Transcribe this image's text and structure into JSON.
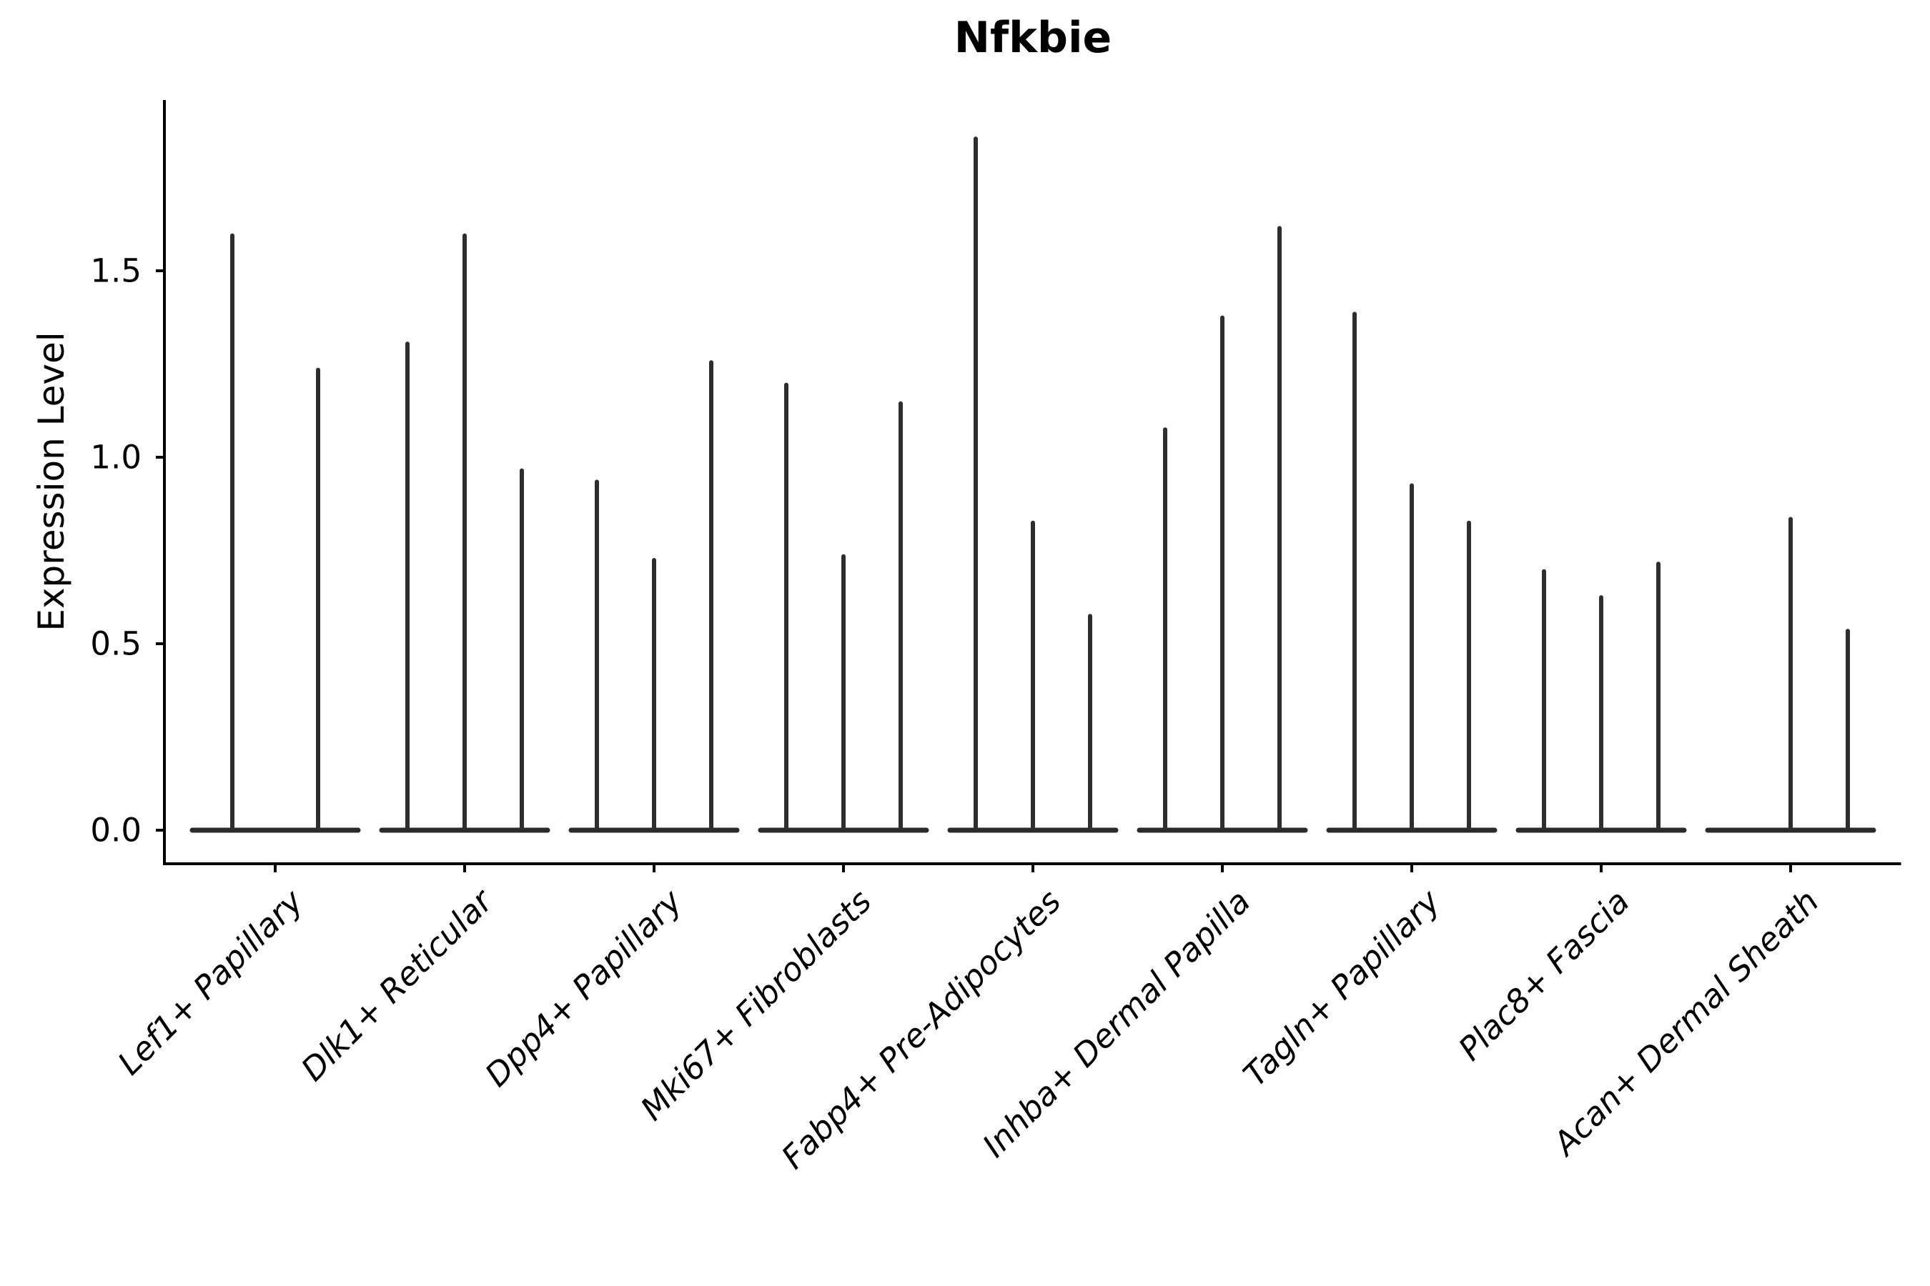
{
  "figure": {
    "title": "Nfkbie"
  },
  "chart_data": {
    "type": "violin",
    "title": "Nfkbie",
    "subtitle": "",
    "xlabel": "",
    "ylabel": "Expression Level",
    "yticks": [
      0.0,
      0.5,
      1.0,
      1.5
    ],
    "ylim": [
      -0.09,
      1.96
    ],
    "grid": false,
    "legend_position": "none",
    "description": "Single-gene expression violin plot; each cell-type category contains several extremely thin violins: a wide flat base at expression 0 with a thin spike rising to the maximum expression value.",
    "colors": {
      "violin": "#2e2e2e",
      "violin_base": "#2a2a2a",
      "axis": "#000000",
      "text": "#000000",
      "background": "#ffffff"
    },
    "categories": [
      "Lef1+ Papillary",
      "Dlk1+ Reticular",
      "Dpp4+ Papillary",
      "Mki67+ Fibroblasts",
      "Fabp4+ Pre-Adipocytes",
      "Inhba+ Dermal Papilla",
      "Tagln+ Papillary",
      "Plac8+ Fascia",
      "Acan+ Dermal Sheath"
    ],
    "series": [
      {
        "category": "Lef1+ Papillary",
        "violin_max_values": [
          1.6,
          1.24
        ]
      },
      {
        "category": "Dlk1+ Reticular",
        "violin_max_values": [
          1.31,
          1.6,
          0.97
        ]
      },
      {
        "category": "Dpp4+ Papillary",
        "violin_max_values": [
          0.94,
          0.73,
          1.26
        ]
      },
      {
        "category": "Mki67+ Fibroblasts",
        "violin_max_values": [
          1.2,
          0.74,
          1.15
        ]
      },
      {
        "category": "Fabp4+ Pre-Adipocytes",
        "violin_max_values": [
          1.86,
          0.83,
          0.58
        ]
      },
      {
        "category": "Inhba+ Dermal Papilla",
        "violin_max_values": [
          1.08,
          1.38,
          1.62
        ]
      },
      {
        "category": "Tagln+ Papillary",
        "violin_max_values": [
          1.39,
          0.93,
          0.83
        ]
      },
      {
        "category": "Plac8+ Fascia",
        "violin_max_values": [
          0.7,
          0.63,
          0.72
        ]
      },
      {
        "category": "Acan+ Dermal Sheath",
        "violin_max_values": [
          0.0,
          0.84,
          0.54
        ]
      }
    ]
  }
}
